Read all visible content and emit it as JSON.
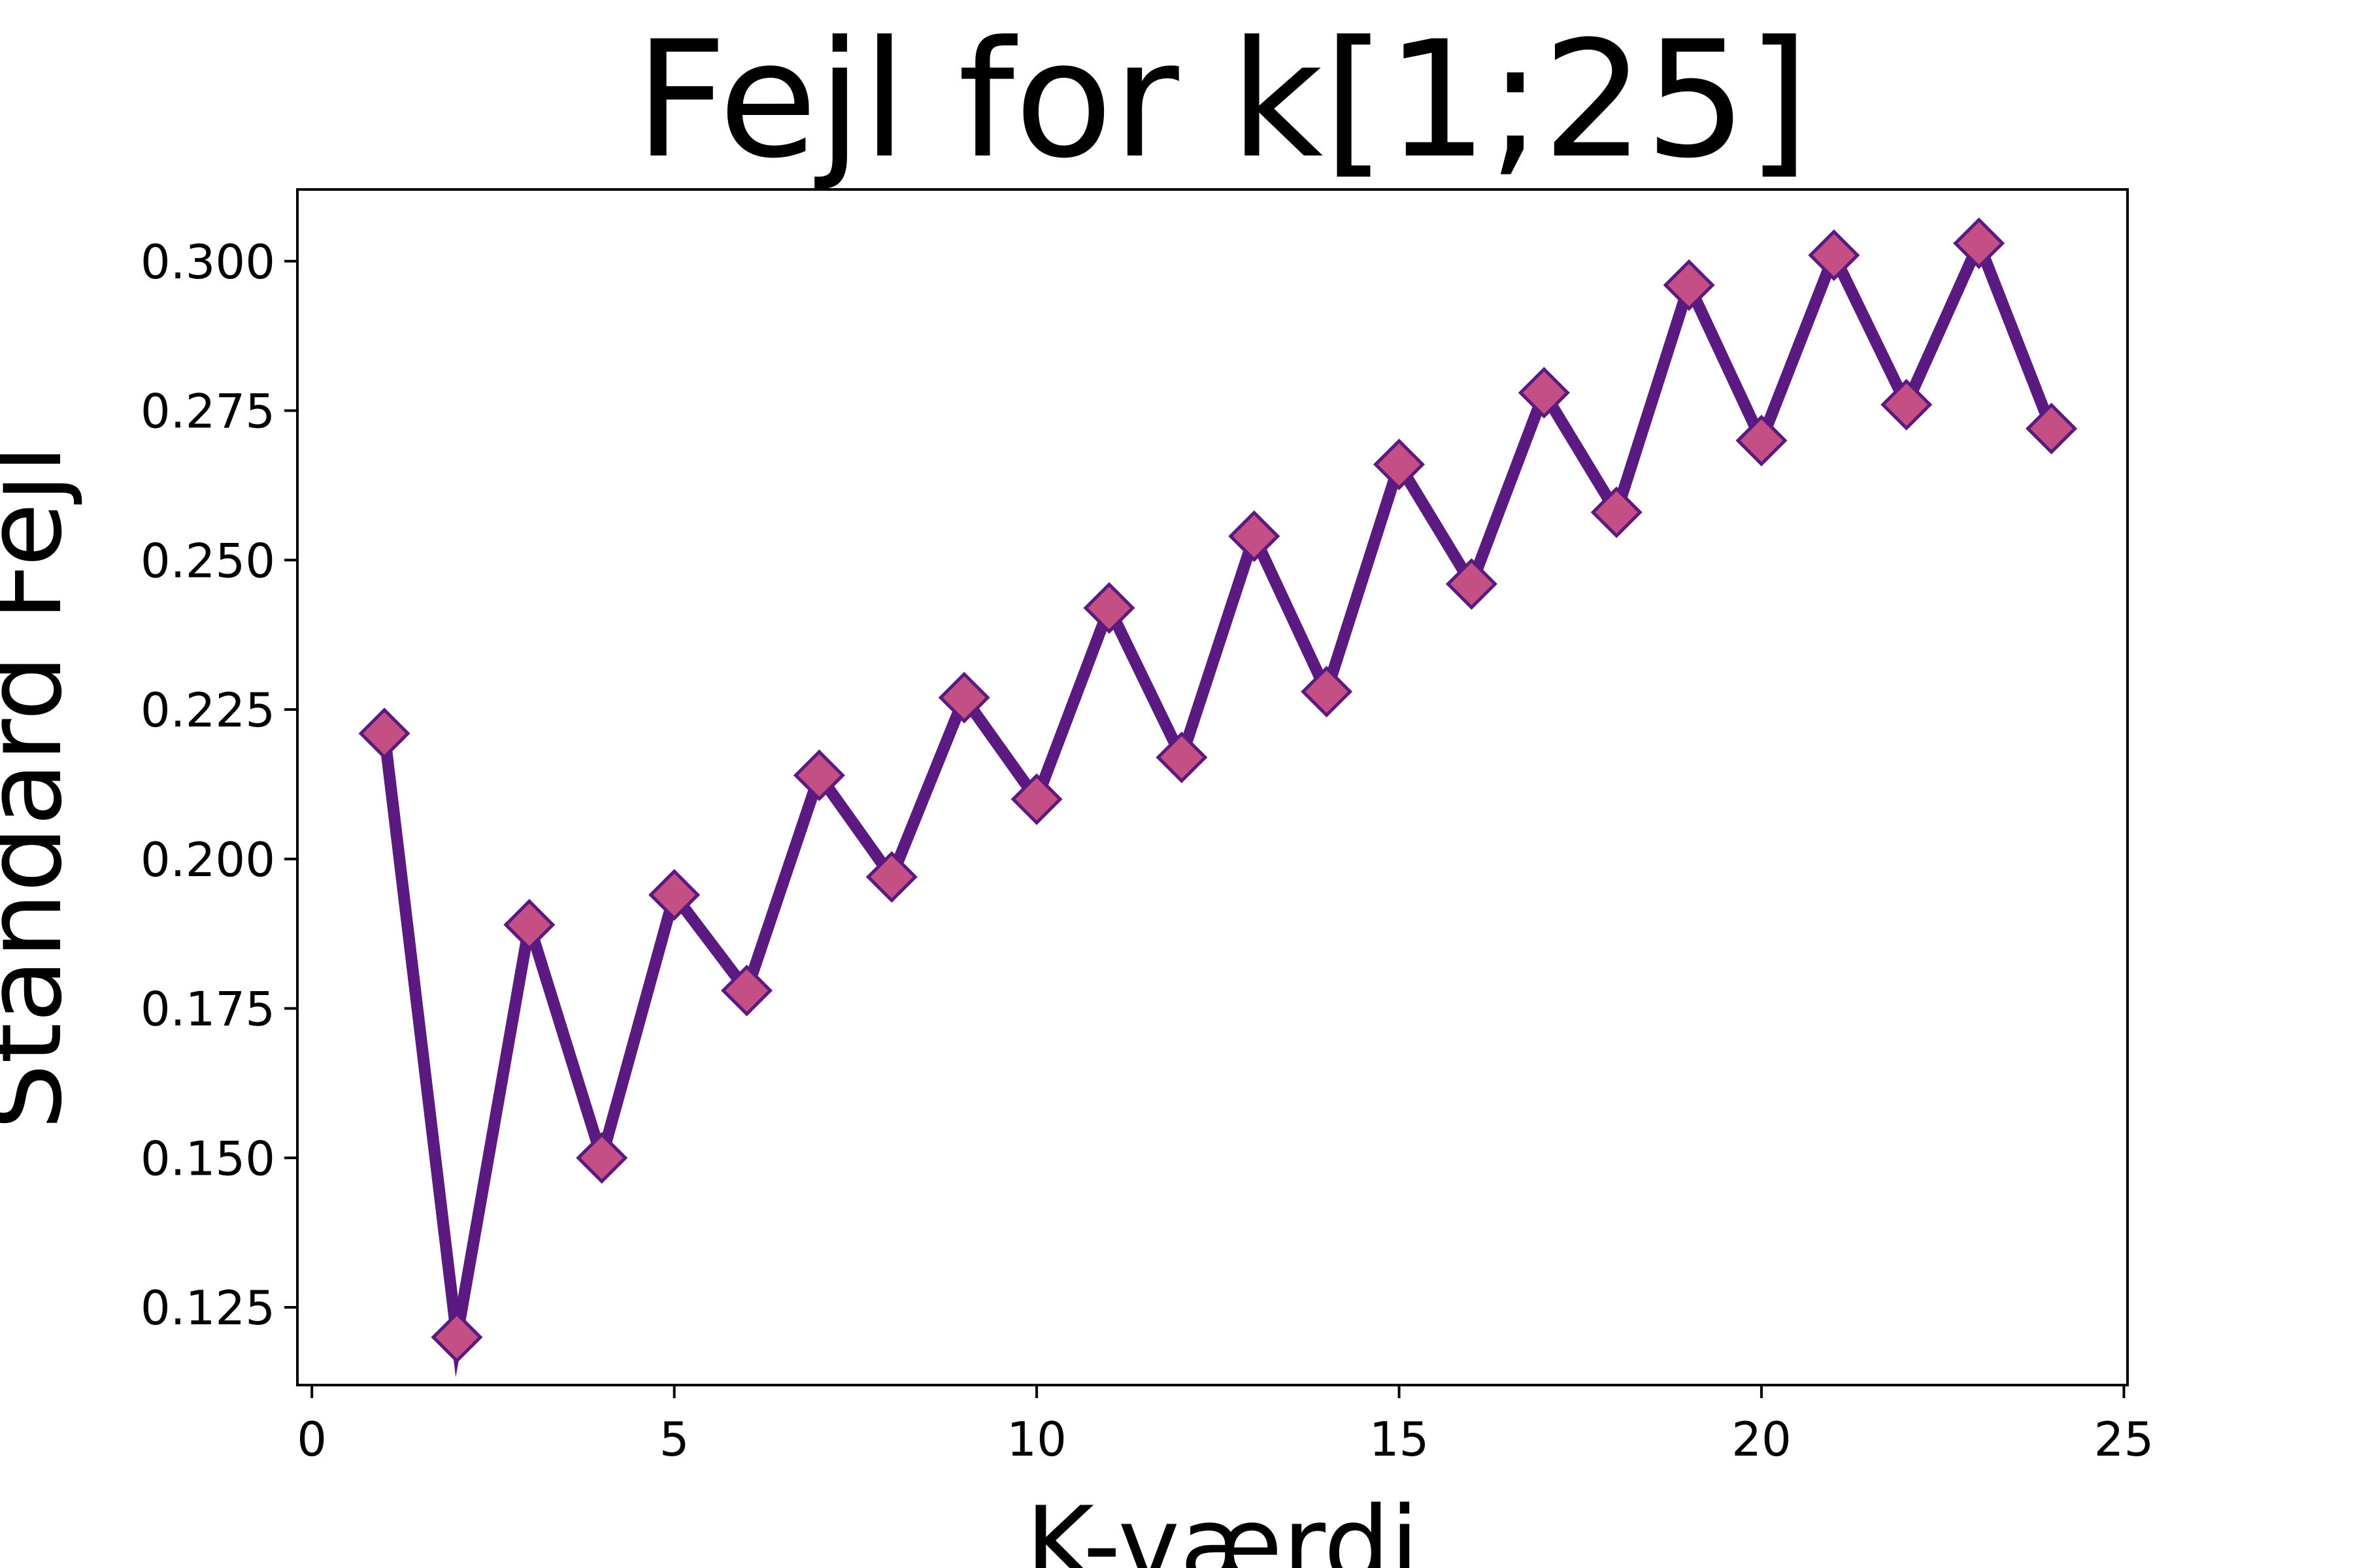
{
  "chart_data": {
    "type": "line",
    "title": "Fejl for k[1;25]",
    "xlabel": "K-værdi",
    "ylabel": "Standard Fejl",
    "xlim": [
      -0.2,
      25.05
    ],
    "ylim": [
      0.112,
      0.312
    ],
    "xticks": [
      0,
      5,
      10,
      15,
      20,
      25
    ],
    "yticks": [
      0.125,
      0.15,
      0.175,
      0.2,
      0.225,
      0.25,
      0.275,
      0.3
    ],
    "ytick_labels": [
      "0.125",
      "0.150",
      "0.175",
      "0.200",
      "0.225",
      "0.250",
      "0.275",
      "0.300"
    ],
    "grid": false,
    "legend": "none",
    "line_color": "#5b1a82",
    "marker": "diamond",
    "marker_fill": "#c44f84",
    "marker_edge": "#5b1a82",
    "series": [
      {
        "x": [
          1,
          2,
          3,
          4,
          5,
          6,
          7,
          8,
          9,
          10,
          11,
          12,
          13,
          14,
          15,
          16,
          17,
          18,
          19,
          20,
          21,
          22,
          23,
          24
        ],
        "values": [
          0.221,
          0.12,
          0.189,
          0.15,
          0.194,
          0.178,
          0.214,
          0.197,
          0.227,
          0.21,
          0.242,
          0.217,
          0.254,
          0.228,
          0.266,
          0.246,
          0.278,
          0.258,
          0.296,
          0.27,
          0.301,
          0.276,
          0.303,
          0.272
        ]
      }
    ]
  }
}
